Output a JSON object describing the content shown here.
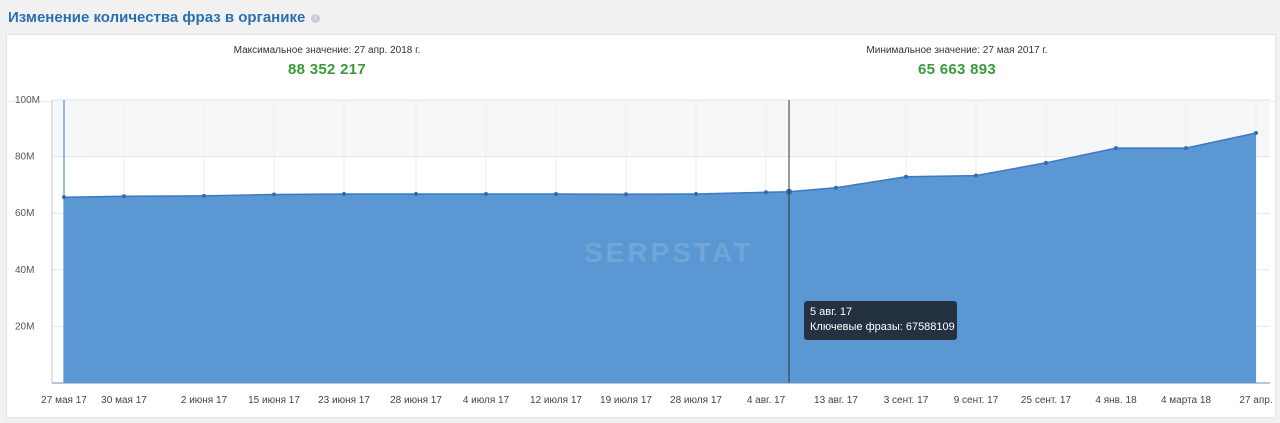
{
  "header": {
    "title": "Изменение количества фраз в органике",
    "info_icon": "info-icon"
  },
  "stats": {
    "max_label": "Максимальное значение: 27 апр. 2018 г.",
    "max_value": "88 352 217",
    "min_label": "Минимальное значение: 27 мая 2017 г.",
    "min_value": "65 663 893"
  },
  "tooltip": {
    "date": "5 авг. 17",
    "text": "Ключевые фразы: 67588109"
  },
  "watermark": "SERPSTAT",
  "colors": {
    "title": "#2a6fb2",
    "area": "#5b97d2",
    "line": "#3b7ac0",
    "value": "#3a9a3a"
  },
  "chart_data": {
    "type": "area",
    "series": [
      {
        "name": "Ключевые фразы",
        "x": [
          "27 мая 17",
          "30 мая 17",
          "2 июня 17",
          "15 июня 17",
          "23 июня 17",
          "28 июня 17",
          "4 июля 17",
          "12 июля 17",
          "19 июля 17",
          "28 июля 17",
          "4 авг. 17",
          "5 авг. 17",
          "13 авг. 17",
          "3 сент. 17",
          "9 сент. 17",
          "25 сент. 17",
          "4 янв. 18",
          "4 марта 18",
          "27 апр."
        ],
        "values": [
          65.66,
          66.0,
          66.1,
          66.6,
          66.8,
          66.8,
          66.8,
          66.8,
          66.7,
          66.8,
          67.4,
          67.59,
          69.0,
          72.9,
          73.3,
          77.8,
          83.0,
          83.0,
          88.35
        ]
      }
    ],
    "x_tick_labels": [
      "27 мая 17",
      "30 мая 17",
      "2 июня 17",
      "15 июня 17",
      "23 июня 17",
      "28 июня 17",
      "4 июля 17",
      "12 июля 17",
      "19 июля 17",
      "28 июля 17",
      "4 авг. 17",
      "13 авг. 17",
      "3 сент. 17",
      "9 сент. 17",
      "25 сент. 17",
      "4 янв. 18",
      "4 марта 18",
      "27 апр."
    ],
    "y_tick_labels": [
      "20M",
      "40M",
      "60M",
      "80M",
      "100M"
    ],
    "ylim": [
      0,
      100
    ],
    "y_unit": "M",
    "grid": true
  }
}
